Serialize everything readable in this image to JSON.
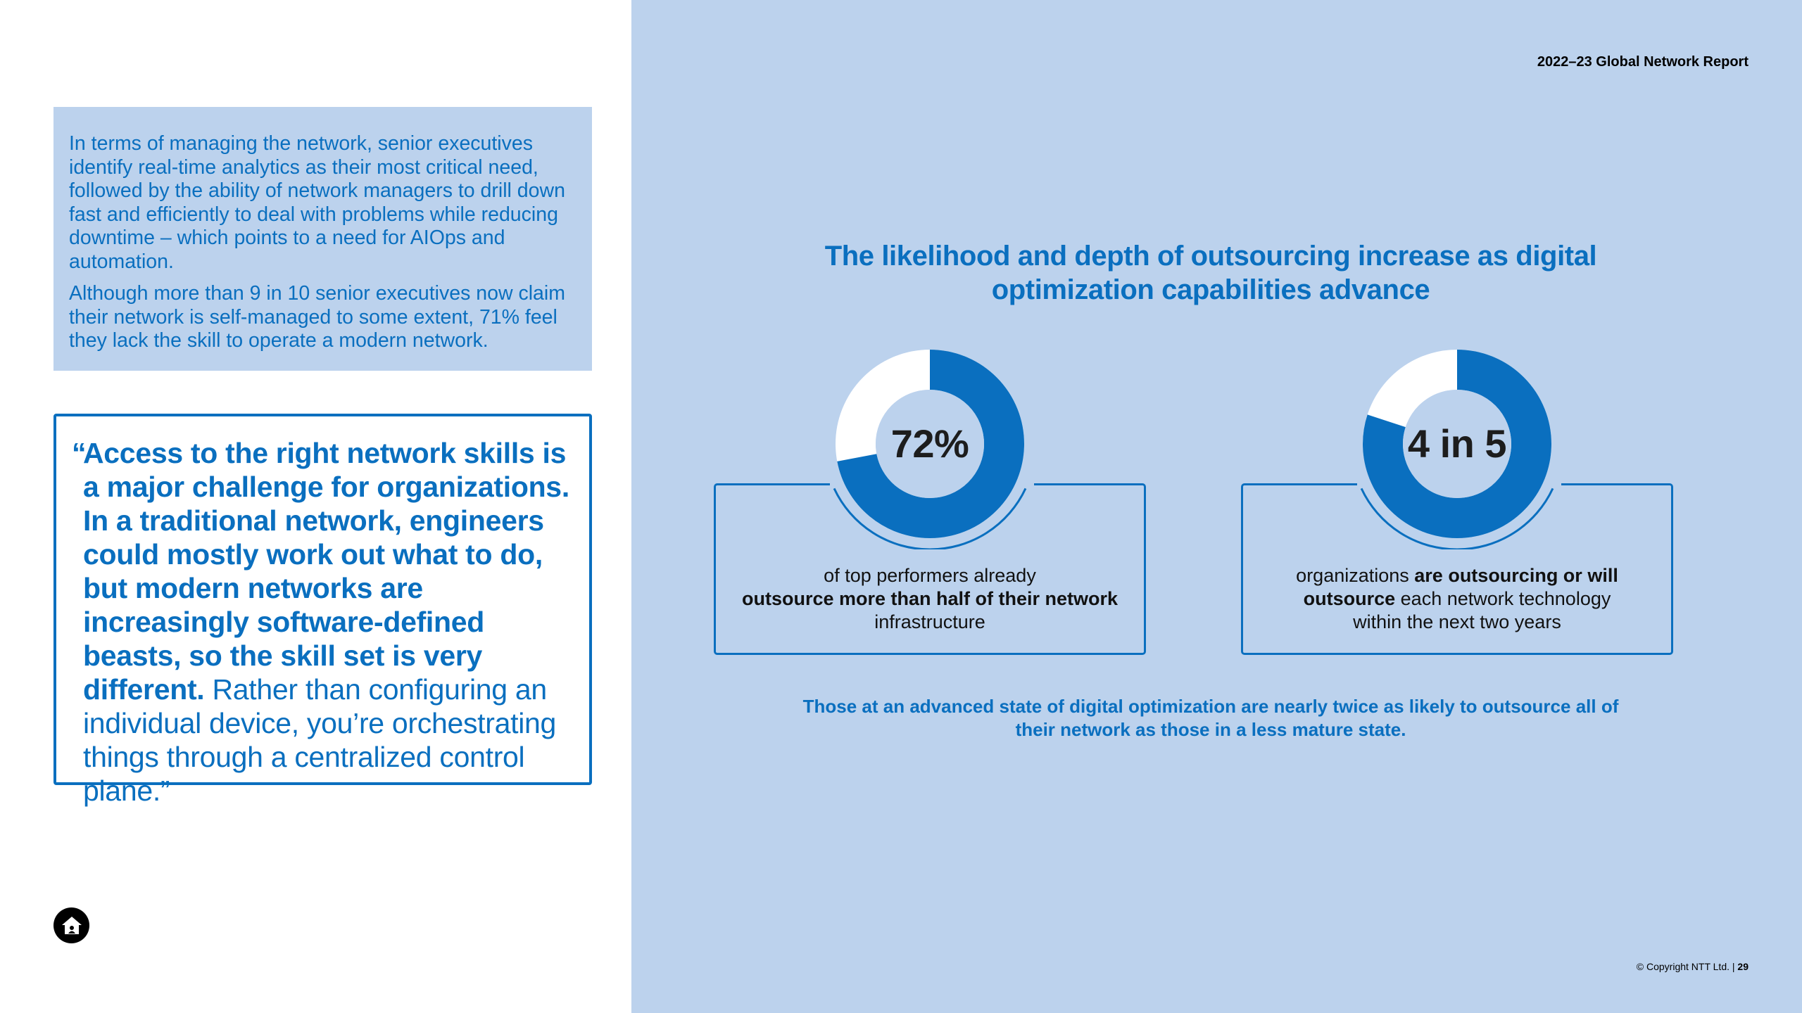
{
  "header": {
    "report_title": "2022–23 Global Network Report"
  },
  "info_box": {
    "paragraph_1": "In terms of managing the network, senior executives identify real-time analytics as their most critical need, followed by the ability of network managers to drill down fast and efficiently to deal with problems while reducing downtime – which points to a need for AIOps and automation.",
    "paragraph_2": "Although more than 9 in 10 senior executives now claim their network is self-managed to some extent, 71% feel they lack the skill to operate a modern network."
  },
  "quote": {
    "open_mark": "“",
    "bold_text": "Access to the right network skills is a major challenge for organizations. In a traditional network, engineers could mostly work out what to do, but modern networks are increasingly software-defined beasts, so the skill set is very different.",
    "light_text": " Rather than configuring an individual device, you’re orchestrating things through a centralized control plane.”"
  },
  "main": {
    "heading": "The likelihood and depth of outsourcing increase as digital optimization capabilities advance",
    "footnote": "Those at an advanced state of digital optimization are nearly twice as likely to outsource all of their network as those in a less mature state."
  },
  "stats": [
    {
      "value": "72%",
      "fraction": 0.72,
      "desc_1": "of top performers already ",
      "desc_2": "outsource more than half of their network",
      "desc_3": " infrastructure"
    },
    {
      "value": "4 in 5",
      "fraction": 0.8,
      "desc_1": "organizations ",
      "desc_2": "are outsourcing or will outsource",
      "desc_3": " each network technology within the next two years"
    }
  ],
  "footer": {
    "copyright": "© Copyright NTT Ltd. | ",
    "page_number": "29"
  },
  "colors": {
    "accent": "#0a6fbf",
    "panel": "#bcd2ed",
    "donut_rest": "#ffffff"
  },
  "icons": {
    "home": "home-icon"
  }
}
